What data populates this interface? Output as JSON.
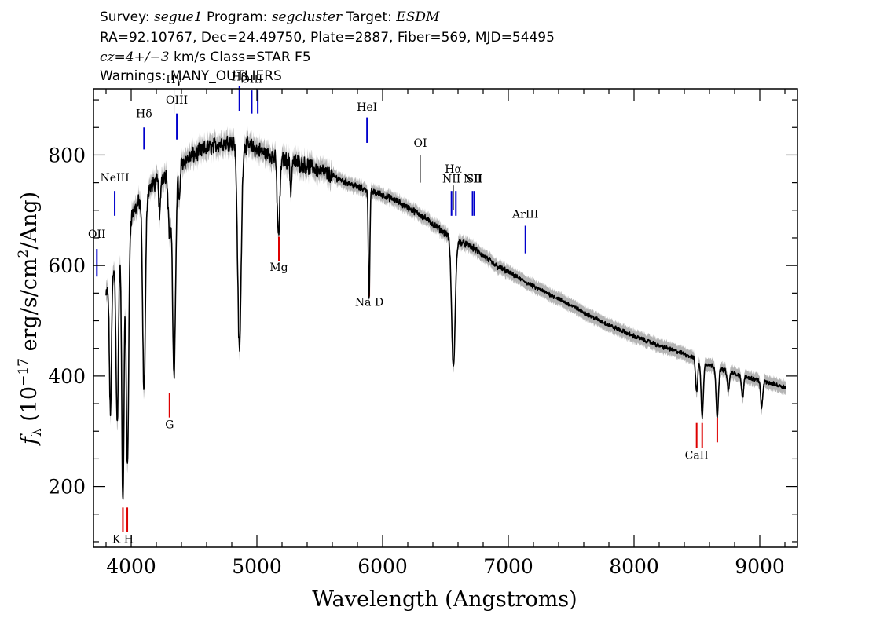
{
  "header": {
    "survey_label": "Survey:",
    "survey": "segue1",
    "program_label": "Program:",
    "program": "segcluster",
    "target_label": "Target:",
    "target": "ESDM",
    "line2": "RA=92.10767, Dec=24.49750, Plate=2887, Fiber=569, MJD=54495",
    "cz_label": "cz=4+/−3",
    "cz_rest": " km/s Class=STAR F5",
    "warnings": "Warnings: MANY_OUTLIERS"
  },
  "colors": {
    "emission": "#0000cc",
    "absorption": "#dd0000",
    "spectrum": "#000000",
    "error_band": "#b4b4b4"
  },
  "chart_data": {
    "type": "line",
    "xlabel": "Wavelength (Angstroms)",
    "ylabel_parts": [
      "f",
      "λ",
      " (10",
      "−17",
      " erg/s/cm",
      "2",
      "/Ang)"
    ],
    "xlim": [
      3700,
      9300
    ],
    "ylim": [
      90,
      920
    ],
    "xticks": [
      4000,
      5000,
      6000,
      7000,
      8000,
      9000
    ],
    "yticks": [
      200,
      400,
      600,
      800
    ],
    "grid": false,
    "continuum": {
      "x": [
        3800,
        3900,
        4000,
        4100,
        4200,
        4300,
        4400,
        4500,
        4600,
        4700,
        4800,
        4900,
        5000,
        5100,
        5200,
        5300,
        5400,
        5500,
        5600,
        5700,
        5800,
        5900,
        6000,
        6100,
        6200,
        6300,
        6400,
        6500,
        6600,
        6700,
        6800,
        6900,
        7000,
        7200,
        7400,
        7600,
        7800,
        8000,
        8200,
        8400,
        8600,
        8800,
        9000,
        9200
      ],
      "y": [
        545,
        620,
        690,
        730,
        752,
        770,
        785,
        800,
        812,
        820,
        825,
        820,
        810,
        800,
        792,
        788,
        780,
        772,
        762,
        752,
        742,
        735,
        728,
        718,
        705,
        692,
        675,
        658,
        645,
        635,
        618,
        600,
        588,
        562,
        540,
        515,
        492,
        472,
        455,
        440,
        420,
        404,
        392,
        380
      ]
    },
    "absorption_features": [
      {
        "x": 3835,
        "depth": 240,
        "width": 8
      },
      {
        "x": 3889,
        "depth": 300,
        "width": 9
      },
      {
        "x": 3934,
        "depth": 470,
        "width": 9
      },
      {
        "x": 3970,
        "depth": 430,
        "width": 10
      },
      {
        "x": 4102,
        "depth": 360,
        "width": 11
      },
      {
        "x": 4227,
        "depth": 70,
        "width": 6
      },
      {
        "x": 4305,
        "depth": 110,
        "width": 10
      },
      {
        "x": 4341,
        "depth": 380,
        "width": 12
      },
      {
        "x": 4383,
        "depth": 70,
        "width": 6
      },
      {
        "x": 4861,
        "depth": 375,
        "width": 14
      },
      {
        "x": 5172,
        "depth": 140,
        "width": 10
      },
      {
        "x": 5270,
        "depth": 55,
        "width": 6
      },
      {
        "x": 5890,
        "depth": 130,
        "width": 5
      },
      {
        "x": 5896,
        "depth": 100,
        "width": 5
      },
      {
        "x": 6563,
        "depth": 235,
        "width": 14
      },
      {
        "x": 8498,
        "depth": 60,
        "width": 8
      },
      {
        "x": 8542,
        "depth": 100,
        "width": 9
      },
      {
        "x": 8662,
        "depth": 90,
        "width": 9
      },
      {
        "x": 8750,
        "depth": 35,
        "width": 8
      },
      {
        "x": 8863,
        "depth": 40,
        "width": 8
      },
      {
        "x": 9015,
        "depth": 50,
        "width": 8
      }
    ],
    "x_range": [
      3800,
      9210
    ],
    "lines": [
      {
        "label": "OII",
        "x": 3727,
        "y_top": 630,
        "y_bot": 580,
        "label_y": 650,
        "color": "emission"
      },
      {
        "label": "NeIII",
        "x": 3869,
        "y_top": 735,
        "y_bot": 690,
        "label_y": 752,
        "color": "emission"
      },
      {
        "label": "Hδ",
        "x": 4102,
        "y_top": 850,
        "y_bot": 810,
        "label_y": 868,
        "color": "emission"
      },
      {
        "label": "Hγ",
        "x": 4341,
        "y_top": 920,
        "y_bot": 875,
        "label_y": 930,
        "color": "thin"
      },
      {
        "label": "OIII",
        "x": 4363,
        "y_top": 875,
        "y_bot": 828,
        "label_y": 893,
        "color": "emission"
      },
      {
        "label": "Hβ",
        "x": 4861,
        "y_top": 925,
        "y_bot": 880,
        "label_y": 935,
        "color": "emission"
      },
      {
        "label": "OIII",
        "x": 4959,
        "y_top": 917,
        "y_bot": 875,
        "label_y": 931,
        "color": "emission"
      },
      {
        "label": "",
        "x": 5007,
        "y_top": 917,
        "y_bot": 875,
        "label_y": 931,
        "color": "emission"
      },
      {
        "label": "HeI",
        "x": 5876,
        "y_top": 868,
        "y_bot": 822,
        "label_y": 880,
        "color": "emission"
      },
      {
        "label": "OI",
        "x": 6300,
        "y_top": 800,
        "y_bot": 750,
        "label_y": 815,
        "color": "thin"
      },
      {
        "label": "NII",
        "x": 6548,
        "y_top": 735,
        "y_bot": 690,
        "label_y": 750,
        "color": "emission"
      },
      {
        "label": "Hα",
        "x": 6563,
        "y_top": 745,
        "y_bot": 700,
        "label_y": 768,
        "color": "thin"
      },
      {
        "label": "",
        "x": 6583,
        "y_top": 735,
        "y_bot": 690,
        "label_y": 750,
        "color": "emission"
      },
      {
        "label": "NII",
        "x": 6716,
        "y_top": 735,
        "y_bot": 690,
        "label_y": 750,
        "color": "emission"
      },
      {
        "label": "SII",
        "x": 6731,
        "y_top": 735,
        "y_bot": 690,
        "label_y": 750,
        "color": "emission"
      },
      {
        "label": "ArIII",
        "x": 7136,
        "y_top": 672,
        "y_bot": 622,
        "label_y": 686,
        "color": "emission"
      },
      {
        "label": "Mg",
        "x": 5175,
        "y_top": 652,
        "y_bot": 608,
        "label_y": 590,
        "color": "absorption"
      },
      {
        "label": "Na D",
        "x": 5894,
        "y_top": 590,
        "y_bot": 544,
        "label_y": 527,
        "color": "absorption"
      },
      {
        "label": "G",
        "x": 4305,
        "y_top": 370,
        "y_bot": 325,
        "label_y": 305,
        "color": "absorption"
      },
      {
        "label": "K H",
        "x": 3934,
        "y_top": 162,
        "y_bot": 118,
        "label_y": 98,
        "color": "absorption"
      },
      {
        "label": "",
        "x": 3969,
        "y_top": 162,
        "y_bot": 118,
        "label_y": 98,
        "color": "absorption"
      },
      {
        "label": "CaII",
        "x": 8498,
        "y_top": 315,
        "y_bot": 270,
        "label_y": 250,
        "color": "absorption"
      },
      {
        "label": "",
        "x": 8542,
        "y_top": 315,
        "y_bot": 270,
        "label_y": 250,
        "color": "absorption"
      },
      {
        "label": "",
        "x": 8662,
        "y_top": 325,
        "y_bot": 280,
        "label_y": 250,
        "color": "absorption"
      }
    ]
  }
}
